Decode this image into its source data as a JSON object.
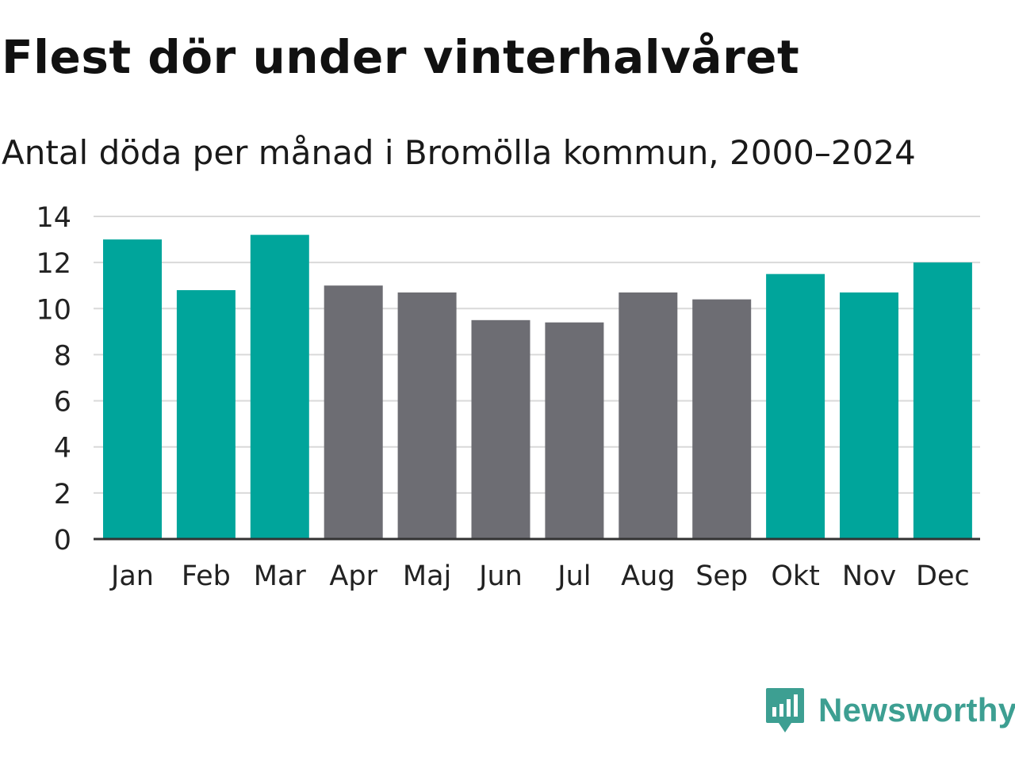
{
  "header": {
    "title": "Flest dör under vinterhalvåret",
    "subtitle": "Antal döda per månad i Bromölla kommun, 2000–2024"
  },
  "brand": {
    "name": "Newsworthy"
  },
  "colors": {
    "highlight": "#00a59b",
    "muted": "#6d6d73",
    "grid": "#d9d9d9",
    "axis": "#333333",
    "brand": "#3d9f92"
  },
  "chart_data": {
    "type": "bar",
    "title": "Flest dör under vinterhalvåret",
    "subtitle": "Antal döda per månad i Bromölla kommun, 2000–2024",
    "xlabel": "",
    "ylabel": "",
    "categories": [
      "Jan",
      "Feb",
      "Mar",
      "Apr",
      "Maj",
      "Jun",
      "Jul",
      "Aug",
      "Sep",
      "Okt",
      "Nov",
      "Dec"
    ],
    "values": [
      13.0,
      10.8,
      13.2,
      11.0,
      10.7,
      9.5,
      9.4,
      10.7,
      10.4,
      11.5,
      10.7,
      12.0
    ],
    "highlight": [
      true,
      true,
      true,
      false,
      false,
      false,
      false,
      false,
      false,
      true,
      true,
      true
    ],
    "ylim": [
      0,
      14
    ],
    "yticks": [
      0,
      2,
      4,
      6,
      8,
      10,
      12,
      14
    ],
    "grid": true,
    "legend": "none"
  }
}
